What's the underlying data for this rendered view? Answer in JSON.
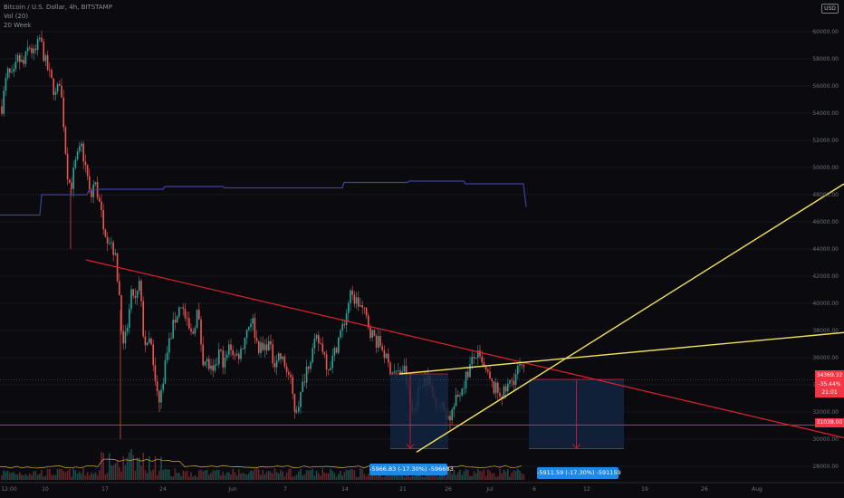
{
  "header": {
    "symbol_line": "Bitcoin / U.S. Dollar, 4h, BITSTAMP",
    "vol_line": "Vol (20)",
    "ma_line": "20 Week"
  },
  "currency_badge": "USD",
  "price_tag": {
    "price": "34369.32",
    "change": "-35.44%",
    "countdown": "21:01"
  },
  "level_tag": "31038.00",
  "measure_labels": [
    {
      "text": "-5966.83 (-17.30%) -596683"
    },
    {
      "text": "-5911.59 (-17.30%) -591159"
    }
  ],
  "colors": {
    "background": "#0b0b0f",
    "candle_up": "#26a69a",
    "candle_down": "#ef5350",
    "trendline_red": "#e0202e",
    "trendline_yellow": "#f1e05a",
    "ma_line": "#3f3ea0",
    "measure_box": "#12253f",
    "tag_red": "#f23645",
    "label_blue": "#1e88e5"
  },
  "chart_data": {
    "type": "candlestick",
    "ylim": [
      27000,
      61000
    ],
    "y_ticks": [
      28000,
      30000,
      32000,
      34000,
      36000,
      38000,
      40000,
      42000,
      44000,
      46000,
      48000,
      50000,
      52000,
      54000,
      56000,
      58000,
      60000
    ],
    "y_tick_labels": [
      "28000.00",
      "30000.00",
      "32000.00",
      "34000.00",
      "36000.00",
      "38000.00",
      "40000.00",
      "42000.00",
      "44000.00",
      "46000.00",
      "48000.00",
      "50000.00",
      "52000.00",
      "54000.00",
      "56000.00",
      "58000.00",
      "60000.00"
    ],
    "xlim": [
      0,
      932
    ],
    "x_ticks": [
      {
        "label": "12:00",
        "pos": 10
      },
      {
        "label": "10",
        "pos": 50
      },
      {
        "label": "17",
        "pos": 116
      },
      {
        "label": "24",
        "pos": 180
      },
      {
        "label": "Jun",
        "pos": 257
      },
      {
        "label": "7",
        "pos": 315
      },
      {
        "label": "14",
        "pos": 381
      },
      {
        "label": "21",
        "pos": 445
      },
      {
        "label": "26",
        "pos": 495
      },
      {
        "label": "Jul",
        "pos": 541
      },
      {
        "label": "6",
        "pos": 590
      },
      {
        "label": "12",
        "pos": 648
      },
      {
        "label": "19",
        "pos": 712
      },
      {
        "label": "26",
        "pos": 778
      },
      {
        "label": "Aug",
        "pos": 836
      }
    ],
    "price_path": [
      [
        2,
        54500
      ],
      [
        8,
        57000
      ],
      [
        14,
        56500
      ],
      [
        20,
        58000
      ],
      [
        26,
        57500
      ],
      [
        32,
        59000
      ],
      [
        38,
        58200
      ],
      [
        44,
        59500
      ],
      [
        50,
        57800
      ],
      [
        56,
        56500
      ],
      [
        62,
        55200
      ],
      [
        66,
        56500
      ],
      [
        70,
        53500
      ],
      [
        74,
        49800
      ],
      [
        78,
        48500
      ],
      [
        84,
        50500
      ],
      [
        90,
        51500
      ],
      [
        96,
        49500
      ],
      [
        100,
        47500
      ],
      [
        104,
        49000
      ],
      [
        108,
        48000
      ],
      [
        112,
        46500
      ],
      [
        118,
        45000
      ],
      [
        124,
        44500
      ],
      [
        128,
        43000
      ],
      [
        132,
        40500
      ],
      [
        136,
        36500
      ],
      [
        140,
        38000
      ],
      [
        146,
        41000
      ],
      [
        150,
        40000
      ],
      [
        154,
        41500
      ],
      [
        158,
        38000
      ],
      [
        162,
        36500
      ],
      [
        166,
        37500
      ],
      [
        170,
        34500
      ],
      [
        176,
        32500
      ],
      [
        182,
        35500
      ],
      [
        188,
        37500
      ],
      [
        194,
        39000
      ],
      [
        200,
        40000
      ],
      [
        206,
        38500
      ],
      [
        212,
        37500
      ],
      [
        218,
        39500
      ],
      [
        224,
        36000
      ],
      [
        230,
        35500
      ],
      [
        236,
        34500
      ],
      [
        242,
        36500
      ],
      [
        248,
        35500
      ],
      [
        254,
        37000
      ],
      [
        260,
        36000
      ],
      [
        266,
        36500
      ],
      [
        272,
        38000
      ],
      [
        278,
        39000
      ],
      [
        284,
        37000
      ],
      [
        290,
        36500
      ],
      [
        296,
        37200
      ],
      [
        302,
        35700
      ],
      [
        308,
        36200
      ],
      [
        314,
        35500
      ],
      [
        320,
        34500
      ],
      [
        326,
        32000
      ],
      [
        332,
        33200
      ],
      [
        338,
        35200
      ],
      [
        344,
        36300
      ],
      [
        350,
        37300
      ],
      [
        356,
        36800
      ],
      [
        362,
        35300
      ],
      [
        368,
        36000
      ],
      [
        374,
        37500
      ],
      [
        380,
        38500
      ],
      [
        386,
        40500
      ],
      [
        392,
        40300
      ],
      [
        398,
        39800
      ],
      [
        404,
        39000
      ],
      [
        410,
        37800
      ],
      [
        416,
        37200
      ],
      [
        422,
        36800
      ],
      [
        428,
        35500
      ],
      [
        434,
        35000
      ],
      [
        440,
        34800
      ],
      [
        446,
        35200
      ],
      [
        452,
        33000
      ],
      [
        456,
        31800
      ],
      [
        460,
        33000
      ],
      [
        466,
        34400
      ],
      [
        472,
        34500
      ],
      [
        478,
        33200
      ],
      [
        484,
        32700
      ],
      [
        490,
        32200
      ],
      [
        496,
        31500
      ],
      [
        502,
        32500
      ],
      [
        508,
        33500
      ],
      [
        514,
        34500
      ],
      [
        520,
        35500
      ],
      [
        526,
        36300
      ],
      [
        532,
        35400
      ],
      [
        538,
        34700
      ],
      [
        544,
        33800
      ],
      [
        550,
        33500
      ],
      [
        556,
        33300
      ],
      [
        562,
        34000
      ],
      [
        568,
        34600
      ],
      [
        574,
        35300
      ],
      [
        580,
        34700
      ]
    ],
    "ma_20_week": [
      [
        0,
        46500
      ],
      [
        44,
        46500
      ],
      [
        46,
        48000
      ],
      [
        96,
        48000
      ],
      [
        98,
        48300
      ],
      [
        112,
        48400
      ],
      [
        180,
        48400
      ],
      [
        182,
        48600
      ],
      [
        246,
        48600
      ],
      [
        248,
        48500
      ],
      [
        378,
        48500
      ],
      [
        380,
        48900
      ],
      [
        450,
        48900
      ],
      [
        452,
        49000
      ],
      [
        512,
        49000
      ],
      [
        514,
        48800
      ],
      [
        578,
        48800
      ],
      [
        581,
        47100
      ]
    ],
    "trendlines": [
      {
        "color": "red",
        "from": [
          95,
          43200
        ],
        "to": [
          932,
          30100
        ]
      },
      {
        "color": "red_horizontal",
        "from": [
          0,
          31038
        ],
        "to": [
          932,
          31038
        ]
      },
      {
        "color": "yellow",
        "from": [
          441,
          34800
        ],
        "to": [
          932,
          37850
        ]
      },
      {
        "color": "yellow",
        "from": [
          460,
          29050
        ],
        "to": [
          932,
          48800
        ]
      }
    ],
    "measure_zones": [
      {
        "x_from": 431,
        "x_to": 495,
        "top": 34800,
        "bottom": 29300
      },
      {
        "x_from": 584,
        "x_to": 689,
        "top": 34400,
        "bottom": 29300
      }
    ]
  }
}
